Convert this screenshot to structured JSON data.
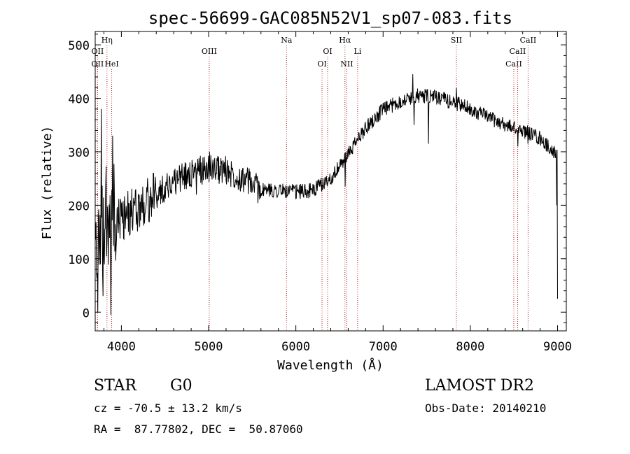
{
  "chart_data": {
    "type": "line",
    "title": "spec-56699-GAC085N52V1_sp07-083.fits",
    "xlabel": "Wavelength (Å)",
    "ylabel": "Flux (relative)",
    "xlim": [
      3700,
      9100
    ],
    "ylim": [
      -35,
      525
    ],
    "x_ticks": [
      4000,
      5000,
      6000,
      7000,
      8000,
      9000
    ],
    "x_tick_labels": [
      "4000",
      "5000",
      "6000",
      "7000",
      "8000",
      "9000"
    ],
    "y_ticks": [
      0,
      100,
      200,
      300,
      400,
      500
    ],
    "y_tick_labels": [
      "0",
      "100",
      "200",
      "300",
      "400",
      "500"
    ],
    "grid": false,
    "line_color": "#000000",
    "marker_color": "#b22222",
    "series": [
      {
        "continuum": {
          "x": [
            3700,
            3800,
            4000,
            4200,
            4400,
            4600,
            4800,
            5000,
            5200,
            5400,
            5600,
            5800,
            6000,
            6200,
            6400,
            6600,
            6800,
            7000,
            7200,
            7400,
            7600,
            7800,
            8000,
            8200,
            8400,
            8600,
            8800,
            8950,
            9000
          ],
          "y": [
            150,
            165,
            175,
            195,
            220,
            245,
            260,
            270,
            265,
            250,
            228,
            228,
            225,
            228,
            250,
            295,
            345,
            378,
            395,
            405,
            402,
            393,
            380,
            365,
            350,
            340,
            325,
            300,
            295
          ]
        },
        "features": [
          {
            "x": 3730,
            "y": 0
          },
          {
            "x": 3770,
            "y": 380
          },
          {
            "x": 3790,
            "y": 30
          },
          {
            "x": 3880,
            "y": -5
          },
          {
            "x": 3900,
            "y": 330
          },
          {
            "x": 4860,
            "y": 220
          },
          {
            "x": 5010,
            "y": 300
          },
          {
            "x": 6565,
            "y": 235
          },
          {
            "x": 7340,
            "y": 445
          },
          {
            "x": 7355,
            "y": 350
          },
          {
            "x": 7520,
            "y": 315
          },
          {
            "x": 7840,
            "y": 420
          },
          {
            "x": 8545,
            "y": 310
          },
          {
            "x": 8660,
            "y": 315
          },
          {
            "x": 8990,
            "y": 200
          },
          {
            "x": 9000,
            "y": 25
          }
        ]
      }
    ],
    "lines": [
      {
        "label": "OII",
        "x": 3727,
        "row": 1
      },
      {
        "label": "OII",
        "x": 3727,
        "row": 2
      },
      {
        "label": "Hη",
        "x": 3835,
        "row": 0
      },
      {
        "label": "HeI",
        "x": 3889,
        "row": 2
      },
      {
        "label": "OIII",
        "x": 5007,
        "row": 1
      },
      {
        "label": "Na",
        "x": 5893,
        "row": 0
      },
      {
        "label": "OI",
        "x": 6300,
        "row": 2
      },
      {
        "label": "OI",
        "x": 6364,
        "row": 1
      },
      {
        "label": "Hα",
        "x": 6563,
        "row": 0
      },
      {
        "label": "NII",
        "x": 6584,
        "row": 2
      },
      {
        "label": "Li",
        "x": 6708,
        "row": 1
      },
      {
        "label": "SII",
        "x": 7840,
        "row": 0
      },
      {
        "label": "CaII",
        "x": 8498,
        "row": 2
      },
      {
        "label": "CaII",
        "x": 8542,
        "row": 1
      },
      {
        "label": "CaII",
        "x": 8662,
        "row": 0
      }
    ]
  },
  "info": {
    "object_class": "STAR",
    "subclass": "G0",
    "survey": "LAMOST DR2",
    "redshift_text": "cz = -70.5 ± 13.2 km/s",
    "obs_date_text": "Obs-Date: 20140210",
    "coords_text": "RA =  87.77802, DEC =  50.87060"
  }
}
